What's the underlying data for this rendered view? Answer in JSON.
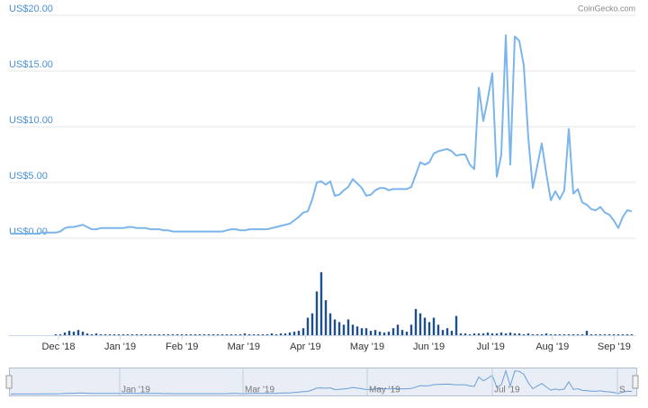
{
  "chart_data": {
    "type": "line",
    "source": "CoinGecko.com",
    "color": "#7cb5ec",
    "ylim": [
      0,
      20
    ],
    "yticks": [
      {
        "value": 0,
        "label": "US$0.00"
      },
      {
        "value": 5,
        "label": "US$5.00"
      },
      {
        "value": 10,
        "label": "US$10.00"
      },
      {
        "value": 15,
        "label": "US$15.00"
      },
      {
        "value": 20,
        "label": "US$20.00"
      }
    ],
    "grid": true,
    "values": [
      0.4,
      0.4,
      0.4,
      0.4,
      0.4,
      0.4,
      0.4,
      0.5,
      0.5,
      0.5,
      0.5,
      0.6,
      0.9,
      1.0,
      1.0,
      1.1,
      1.2,
      1.0,
      0.8,
      0.8,
      0.9,
      0.9,
      0.9,
      0.9,
      0.9,
      0.9,
      1.0,
      1.0,
      0.9,
      0.9,
      0.9,
      0.8,
      0.8,
      0.8,
      0.7,
      0.7,
      0.6,
      0.6,
      0.6,
      0.6,
      0.6,
      0.6,
      0.6,
      0.6,
      0.6,
      0.6,
      0.6,
      0.6,
      0.7,
      0.8,
      0.8,
      0.7,
      0.7,
      0.8,
      0.8,
      0.8,
      0.8,
      0.8,
      0.9,
      1.0,
      1.1,
      1.2,
      1.3,
      1.6,
      1.9,
      2.3,
      2.4,
      3.5,
      5.0,
      5.1,
      4.8,
      5.1,
      3.8,
      3.9,
      4.3,
      4.6,
      5.3,
      4.9,
      4.5,
      3.8,
      3.9,
      4.3,
      4.5,
      4.5,
      4.3,
      4.4,
      4.4,
      4.4,
      4.4,
      4.6,
      5.7,
      6.8,
      6.6,
      6.8,
      7.6,
      7.8,
      7.9,
      8.0,
      7.8,
      7.4,
      7.5,
      7.5,
      6.6,
      6.2,
      13.5,
      10.5,
      12.5,
      14.8,
      5.5,
      7.5,
      18.2,
      6.6,
      18.1,
      17.7,
      15.5,
      9,
      4.5,
      6.5,
      8.5,
      5.8,
      3.4,
      4.2,
      3.5,
      4.3,
      9.8,
      4.0,
      4.4,
      3.2,
      3.0,
      2.6,
      2.5,
      2.8,
      2.3,
      2.1,
      1.6,
      0.9,
      1.9,
      2.5,
      2.4
    ],
    "volume": {
      "color": "#1f4e8c",
      "ylim": [
        0,
        75
      ],
      "values": [
        0,
        0,
        0,
        0,
        0,
        0,
        0,
        0,
        0,
        0,
        1,
        1,
        3,
        5,
        4,
        6,
        4,
        2,
        1,
        2,
        1,
        1,
        1,
        1,
        1,
        1,
        1,
        1,
        1,
        1,
        1,
        1,
        1,
        1,
        1,
        1,
        1,
        1,
        1,
        1,
        1,
        1,
        1,
        1,
        1,
        1,
        1,
        1,
        1,
        1,
        1,
        1,
        2,
        1,
        1,
        1,
        1,
        1,
        2,
        1,
        2,
        2,
        3,
        4,
        5,
        8,
        20,
        25,
        50,
        72,
        40,
        25,
        18,
        15,
        12,
        18,
        12,
        10,
        8,
        8,
        5,
        6,
        4,
        3,
        4,
        8,
        12,
        6,
        4,
        12,
        30,
        25,
        20,
        15,
        20,
        12,
        6,
        8,
        5,
        22,
        2,
        2,
        1,
        2,
        2,
        2,
        3,
        2,
        2,
        3,
        2,
        3,
        2,
        2,
        1,
        2,
        1,
        1,
        1,
        2,
        1,
        1,
        1,
        1,
        1,
        1,
        1,
        1,
        5,
        1,
        1,
        1,
        1,
        1,
        1,
        1,
        1,
        1,
        1
      ]
    },
    "x_labels": [
      "Dec '18",
      "Jan '19",
      "Feb '19",
      "Mar '19",
      "Apr '19",
      "May '19",
      "Jun '19",
      "Jul '19",
      "Aug '19",
      "Sep '19"
    ],
    "navigator": {
      "labels": [
        "Jan '19",
        "Mar '19",
        "May '19",
        "Jul '19",
        "S"
      ]
    }
  }
}
